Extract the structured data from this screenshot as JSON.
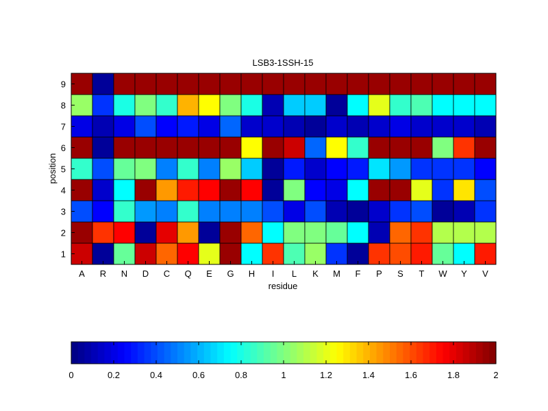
{
  "chart_data": {
    "type": "heatmap",
    "title": "LSB3-1SSH-15",
    "xlabel": "residue",
    "ylabel": "position",
    "x_categories": [
      "A",
      "R",
      "N",
      "D",
      "C",
      "Q",
      "E",
      "G",
      "H",
      "I",
      "L",
      "K",
      "M",
      "F",
      "P",
      "S",
      "T",
      "W",
      "Y",
      "V"
    ],
    "y_categories": [
      "1",
      "2",
      "3",
      "4",
      "5",
      "6",
      "7",
      "8",
      "9"
    ],
    "values": [
      [
        1.85,
        0.05,
        0.95,
        1.85,
        1.55,
        1.75,
        1.2,
        1.95,
        0.75,
        1.65,
        0.9,
        1.05,
        0.35,
        0.05,
        1.65,
        1.6,
        1.7,
        0.95,
        0.75,
        1.7
      ],
      [
        1.95,
        1.65,
        1.75,
        0.05,
        1.8,
        1.45,
        0.05,
        1.95,
        1.55,
        0.75,
        1.0,
        1.0,
        0.95,
        0.75,
        0.1,
        1.55,
        1.65,
        1.1,
        1.1,
        1.1
      ],
      [
        0.4,
        0.25,
        0.85,
        0.55,
        0.5,
        0.85,
        0.5,
        0.5,
        0.5,
        0.4,
        0.2,
        0.4,
        0.1,
        0.05,
        0.15,
        0.35,
        0.4,
        0.05,
        0.1,
        0.35
      ],
      [
        1.95,
        0.15,
        0.75,
        1.95,
        1.45,
        1.7,
        1.75,
        1.95,
        1.75,
        0.05,
        1.0,
        0.25,
        0.2,
        0.75,
        1.95,
        1.95,
        1.2,
        0.35,
        1.3,
        0.4
      ],
      [
        0.85,
        0.4,
        0.95,
        1.0,
        0.5,
        0.85,
        0.5,
        1.05,
        0.65,
        0.05,
        0.3,
        0.15,
        0.25,
        0.3,
        0.7,
        0.55,
        0.35,
        0.35,
        0.35,
        0.25
      ],
      [
        1.95,
        0.05,
        1.95,
        1.95,
        1.95,
        1.95,
        1.95,
        1.95,
        1.25,
        1.95,
        1.85,
        0.45,
        1.25,
        0.85,
        1.95,
        1.95,
        1.95,
        1.0,
        1.65,
        1.95
      ],
      [
        0.2,
        0.1,
        0.2,
        0.4,
        0.25,
        0.3,
        0.2,
        0.45,
        0.15,
        0.15,
        0.1,
        0.05,
        0.15,
        0.1,
        0.15,
        0.2,
        0.15,
        0.15,
        0.15,
        0.1
      ],
      [
        1.05,
        0.35,
        0.8,
        1.0,
        0.85,
        1.4,
        1.25,
        1.0,
        0.8,
        0.1,
        0.65,
        0.65,
        0.05,
        0.75,
        1.2,
        0.85,
        0.9,
        0.75,
        0.75,
        0.75
      ],
      [
        1.95,
        0.05,
        1.95,
        1.95,
        1.95,
        1.95,
        1.95,
        1.95,
        1.95,
        1.95,
        1.95,
        1.95,
        1.95,
        1.95,
        1.95,
        1.95,
        1.95,
        1.95,
        1.95,
        1.95
      ]
    ],
    "colorbar": {
      "colormap": "jet",
      "range": [
        0,
        2
      ],
      "ticks": [
        "0",
        "0.2",
        "0.4",
        "0.6",
        "0.8",
        "1",
        "1.2",
        "1.4",
        "1.6",
        "1.8",
        "2"
      ]
    }
  }
}
